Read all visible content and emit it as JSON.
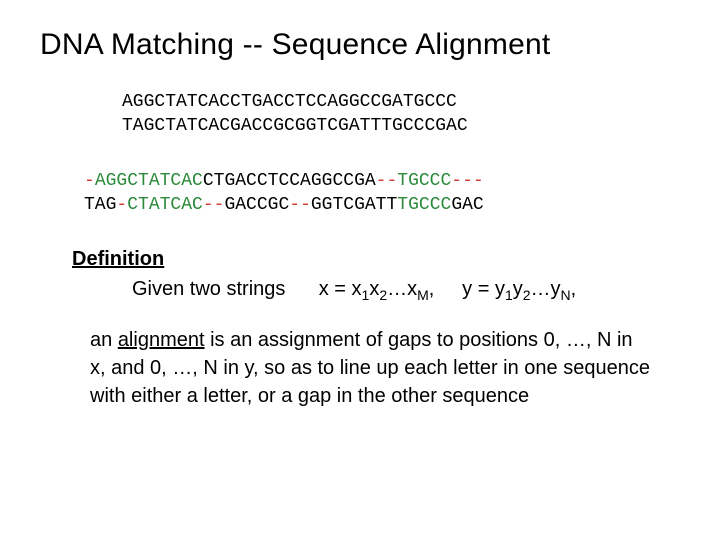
{
  "title": "DNA Matching -- Sequence Alignment",
  "sequences": {
    "top1": "AGGCTATCACCTGACCTCCAGGCCGATGCCC",
    "top2": "TAGCTATCACGACCGCGGTCGATTTGCCCGAC",
    "aligned1_segments": [
      {
        "t": "-",
        "c": "g"
      },
      {
        "t": "AGGCTATCAC",
        "c": "m"
      },
      {
        "t": "CTGACCTCCAGGCCGA",
        "c": "x"
      },
      {
        "t": "--",
        "c": "g"
      },
      {
        "t": "TGCCC",
        "c": "m"
      },
      {
        "t": "---",
        "c": "g"
      }
    ],
    "aligned2_segments": [
      {
        "t": "TAG",
        "c": "x"
      },
      {
        "t": "-",
        "c": "g"
      },
      {
        "t": "CTATCAC",
        "c": "m"
      },
      {
        "t": "--",
        "c": "g"
      },
      {
        "t": "GACCGC",
        "c": "x"
      },
      {
        "t": "--",
        "c": "g"
      },
      {
        "t": "GGTCGATT",
        "c": "x"
      },
      {
        "t": "TGCCC",
        "c": "m"
      },
      {
        "t": "GAC",
        "c": "x"
      }
    ]
  },
  "definition": {
    "label": "Definition",
    "given_prefix": "Given two strings",
    "x_expr_prefix": "x = x",
    "x_sub1": "1",
    "x_mid": "x",
    "x_sub2": "2",
    "x_ell": "…x",
    "x_subM": "M",
    "comma1": ",",
    "y_expr_prefix": "y = y",
    "y_sub1": "1",
    "y_mid": "y",
    "y_sub2": "2",
    "y_ell": "…y",
    "y_subN": "N",
    "comma2": ",",
    "para_pre": "an ",
    "para_ul": "alignment",
    "para_rest": " is an assignment of gaps to positions 0, …, N in x, and 0, …, N in y, so as to line up each letter in one sequence with either a letter, or a gap in the other sequence"
  },
  "colors": {
    "gap": "#d63a2f",
    "match": "#2a8a3a",
    "text": "#000000",
    "bg": "#ffffff"
  }
}
